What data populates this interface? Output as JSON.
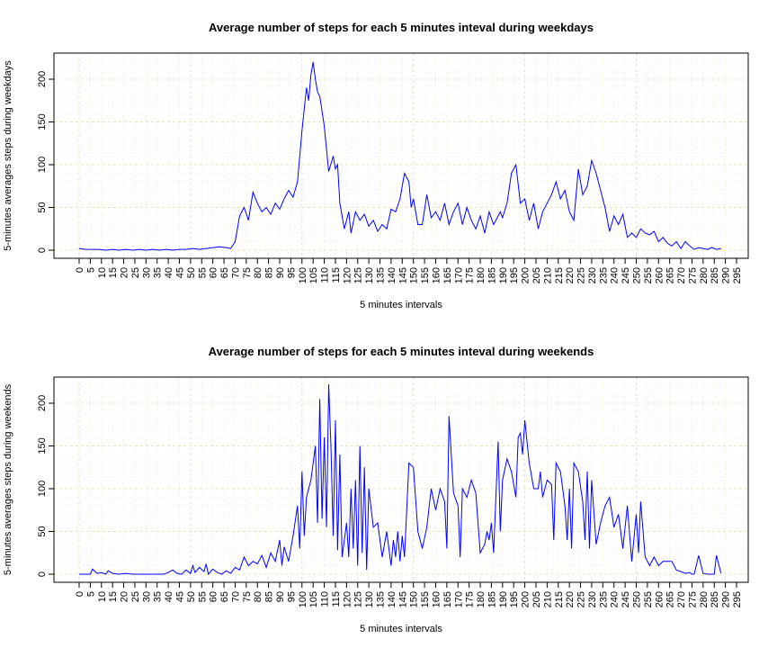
{
  "chart_data": [
    {
      "type": "line",
      "title": "Average number of steps for each 5 minutes inteval during weekdays",
      "xlabel": "5 minutes intervals",
      "ylabel": "5-minutes averages steps during weekdays",
      "xlim": [
        0,
        295
      ],
      "ylim": [
        0,
        220
      ],
      "xticks": [
        0,
        5,
        10,
        15,
        20,
        25,
        30,
        35,
        40,
        45,
        50,
        55,
        60,
        65,
        70,
        75,
        80,
        85,
        90,
        95,
        100,
        105,
        110,
        115,
        120,
        125,
        130,
        135,
        140,
        145,
        150,
        155,
        160,
        165,
        170,
        175,
        180,
        185,
        190,
        195,
        200,
        205,
        210,
        215,
        220,
        225,
        230,
        235,
        240,
        245,
        250,
        255,
        260,
        265,
        270,
        275,
        280,
        285,
        290,
        295
      ],
      "yticks": [
        0,
        50,
        100,
        150,
        200
      ],
      "grid": true,
      "line_color": "#0000ff",
      "grid_color": "#e6e4c2",
      "series": [
        {
          "x": [
            0,
            3,
            6,
            9,
            12,
            15,
            18,
            21,
            24,
            27,
            30,
            33,
            36,
            39,
            42,
            45,
            48,
            51,
            54,
            57,
            60,
            63,
            66,
            68,
            70,
            72,
            74,
            76,
            78,
            80,
            82,
            84,
            86,
            88,
            90,
            92,
            94,
            96,
            98,
            100,
            102,
            103,
            104,
            105,
            106,
            107,
            108,
            110,
            112,
            114,
            115,
            116,
            117,
            118,
            119,
            120,
            121,
            122,
            124,
            126,
            128,
            130,
            132,
            134,
            136,
            138,
            140,
            142,
            144,
            146,
            148,
            149,
            150,
            152,
            154,
            156,
            158,
            160,
            162,
            164,
            166,
            168,
            170,
            172,
            174,
            176,
            178,
            180,
            182,
            184,
            186,
            188,
            189,
            190,
            192,
            194,
            196,
            198,
            200,
            202,
            204,
            206,
            208,
            210,
            212,
            214,
            216,
            218,
            220,
            222,
            224,
            226,
            228,
            230,
            232,
            234,
            236,
            238,
            240,
            242,
            244,
            246,
            248,
            250,
            252,
            254,
            256,
            258,
            260,
            262,
            264,
            266,
            268,
            270,
            272,
            274,
            276,
            278,
            280,
            282,
            284,
            286,
            288
          ],
          "y": [
            2,
            1,
            1,
            1,
            0,
            1,
            0,
            1,
            0,
            1,
            0,
            1,
            0,
            1,
            0,
            1,
            1,
            2,
            1,
            2,
            3,
            4,
            3,
            2,
            10,
            40,
            50,
            35,
            68,
            55,
            45,
            50,
            42,
            55,
            48,
            60,
            70,
            62,
            80,
            140,
            190,
            175,
            205,
            220,
            200,
            185,
            180,
            145,
            92,
            110,
            95,
            100,
            55,
            40,
            25,
            35,
            45,
            20,
            45,
            35,
            42,
            28,
            35,
            22,
            30,
            25,
            48,
            45,
            60,
            90,
            80,
            50,
            60,
            30,
            30,
            65,
            38,
            45,
            35,
            55,
            30,
            45,
            55,
            30,
            50,
            35,
            25,
            40,
            20,
            45,
            30,
            40,
            45,
            38,
            55,
            90,
            100,
            55,
            60,
            35,
            55,
            25,
            45,
            55,
            65,
            80,
            60,
            70,
            45,
            35,
            95,
            65,
            75,
            105,
            90,
            70,
            50,
            22,
            40,
            30,
            42,
            15,
            20,
            15,
            25,
            20,
            18,
            22,
            10,
            15,
            8,
            5,
            10,
            2,
            10,
            5,
            1,
            3,
            2,
            1,
            3,
            1,
            2
          ]
        }
      ]
    },
    {
      "type": "line",
      "title": "Average number of steps for each 5 minutes inteval during weekends",
      "xlabel": "5 minutes intervals",
      "ylabel": "5-minutes averages steps during weekends",
      "xlim": [
        0,
        295
      ],
      "ylim": [
        0,
        220
      ],
      "xticks": [
        0,
        5,
        10,
        15,
        20,
        25,
        30,
        35,
        40,
        45,
        50,
        55,
        60,
        65,
        70,
        75,
        80,
        85,
        90,
        95,
        100,
        105,
        110,
        115,
        120,
        125,
        130,
        135,
        140,
        145,
        150,
        155,
        160,
        165,
        170,
        175,
        180,
        185,
        190,
        195,
        200,
        205,
        210,
        215,
        220,
        225,
        230,
        235,
        240,
        245,
        250,
        255,
        260,
        265,
        270,
        275,
        280,
        285,
        290,
        295
      ],
      "yticks": [
        0,
        50,
        100,
        150,
        200
      ],
      "grid": true,
      "line_color": "#0000ff",
      "grid_color": "#e6e4c2",
      "series": [
        {
          "x": [
            0,
            3,
            5,
            6,
            8,
            10,
            12,
            13,
            15,
            18,
            21,
            24,
            27,
            30,
            33,
            36,
            38,
            40,
            42,
            44,
            46,
            48,
            50,
            51,
            52,
            54,
            56,
            57,
            58,
            60,
            62,
            64,
            66,
            68,
            70,
            72,
            74,
            76,
            78,
            80,
            82,
            84,
            86,
            88,
            90,
            91,
            92,
            94,
            96,
            98,
            99,
            100,
            101,
            102,
            104,
            106,
            107,
            108,
            109,
            110,
            111,
            112,
            113,
            114,
            115,
            116,
            117,
            118,
            120,
            121,
            122,
            123,
            124,
            125,
            126,
            127,
            128,
            129,
            130,
            132,
            134,
            136,
            138,
            140,
            141,
            142,
            143,
            144,
            145,
            146,
            148,
            150,
            152,
            154,
            156,
            158,
            160,
            162,
            164,
            165,
            166,
            168,
            170,
            171,
            172,
            174,
            176,
            178,
            180,
            182,
            183,
            184,
            185,
            186,
            188,
            189,
            190,
            192,
            194,
            196,
            197,
            198,
            199,
            200,
            202,
            204,
            206,
            207,
            208,
            210,
            212,
            213,
            214,
            216,
            218,
            219,
            220,
            221,
            222,
            224,
            226,
            227,
            228,
            229,
            230,
            232,
            234,
            236,
            238,
            240,
            242,
            244,
            246,
            248,
            250,
            251,
            252,
            254,
            256,
            258,
            260,
            262,
            264,
            266,
            268,
            270,
            272,
            274,
            275,
            276,
            278,
            280,
            282,
            284,
            285,
            286,
            288
          ],
          "y": [
            0,
            0,
            0,
            6,
            1,
            2,
            0,
            4,
            1,
            0,
            1,
            0,
            0,
            0,
            0,
            0,
            0,
            2,
            5,
            1,
            0,
            5,
            1,
            10,
            2,
            8,
            3,
            12,
            0,
            6,
            2,
            0,
            4,
            1,
            8,
            5,
            20,
            10,
            15,
            12,
            22,
            8,
            25,
            15,
            40,
            10,
            32,
            15,
            45,
            80,
            30,
            120,
            45,
            90,
            110,
            150,
            60,
            205,
            65,
            160,
            55,
            222,
            150,
            45,
            180,
            28,
            140,
            20,
            60,
            20,
            100,
            30,
            110,
            10,
            150,
            25,
            125,
            5,
            100,
            55,
            60,
            20,
            50,
            10,
            40,
            20,
            50,
            15,
            45,
            20,
            130,
            125,
            50,
            30,
            55,
            100,
            75,
            100,
            85,
            30,
            185,
            95,
            80,
            20,
            100,
            90,
            110,
            95,
            25,
            35,
            50,
            40,
            60,
            25,
            155,
            50,
            110,
            135,
            120,
            90,
            160,
            165,
            140,
            180,
            130,
            100,
            100,
            120,
            90,
            110,
            105,
            40,
            130,
            120,
            80,
            40,
            100,
            30,
            130,
            120,
            85,
            40,
            120,
            30,
            110,
            35,
            60,
            80,
            90,
            55,
            70,
            30,
            80,
            15,
            70,
            25,
            85,
            20,
            10,
            20,
            10,
            15,
            15,
            15,
            5,
            3,
            1,
            2,
            0,
            0,
            22,
            1,
            0,
            0,
            0,
            22,
            1
          ]
        }
      ]
    }
  ]
}
